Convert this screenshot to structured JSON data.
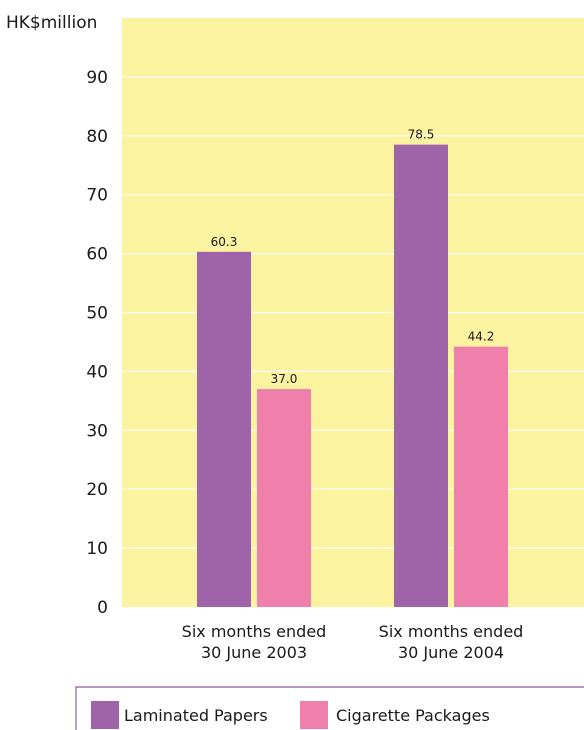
{
  "chart_data": {
    "type": "bar",
    "ylabel": "HK$million",
    "ylim": [
      0,
      100
    ],
    "yticks": [
      0,
      10,
      20,
      30,
      40,
      50,
      60,
      70,
      80,
      90
    ],
    "categories": [
      [
        "Six months ended",
        "30 June 2003"
      ],
      [
        "Six months ended",
        "30 June 2004"
      ]
    ],
    "series": [
      {
        "name": "Laminated Papers",
        "values": [
          60.3,
          78.5
        ],
        "labels": [
          "60.3",
          "78.5"
        ],
        "color": "#9e63a8"
      },
      {
        "name": "Cigarette Packages",
        "values": [
          37.0,
          44.2
        ],
        "labels": [
          "37.0",
          "44.2"
        ],
        "color": "#ef7fab"
      }
    ],
    "plot_background": "#fbf3a0",
    "grid": true,
    "grid_color": "#ffffff",
    "legend_position": "bottom"
  }
}
